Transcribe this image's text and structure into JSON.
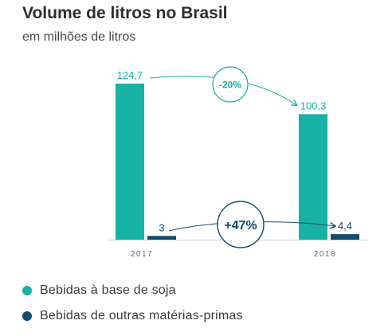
{
  "colors": {
    "soja": "#17b2a4",
    "outras": "#124d6e",
    "axis": "#cfcfcf"
  },
  "chart_data": {
    "type": "bar",
    "title": "Volume de litros no Brasil",
    "subtitle": "em milhões de litros",
    "categories": [
      "2017",
      "2018"
    ],
    "series": [
      {
        "name": "Bebidas à base de soja",
        "values": [
          124.7,
          100.3
        ],
        "labels": [
          "124,7",
          "100,3"
        ]
      },
      {
        "name": "Bebidas de outras matérias-primas",
        "values": [
          3,
          4.4
        ],
        "labels": [
          "3",
          "4,4"
        ]
      }
    ],
    "annotations": [
      {
        "series": 0,
        "text": "-20%"
      },
      {
        "series": 1,
        "text": "+47%"
      }
    ],
    "ylim": [
      0,
      124.7
    ],
    "grid": false,
    "legend": "bottom-left"
  }
}
